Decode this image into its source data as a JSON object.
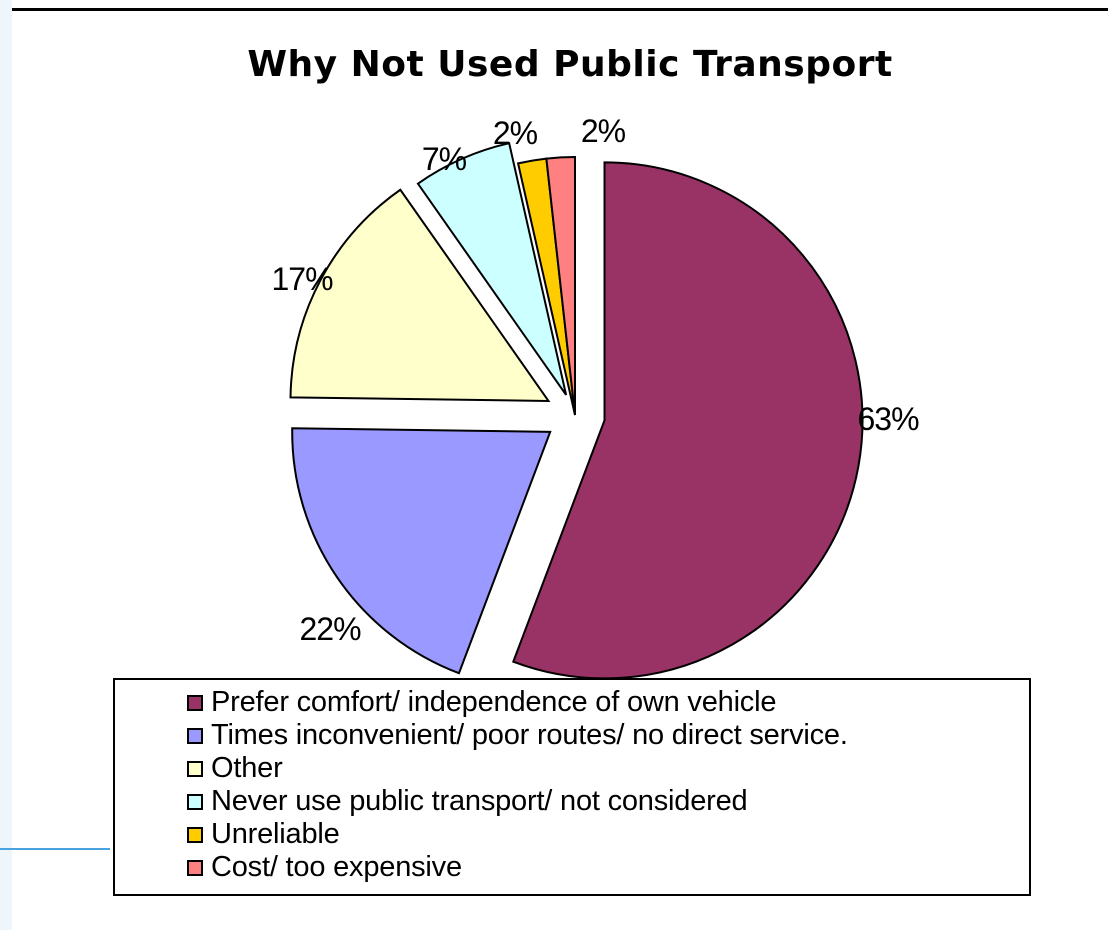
{
  "chart_data": {
    "type": "pie",
    "title": "Why Not Used Public Transport",
    "legend_position": "bottom",
    "slices": [
      {
        "label": "Prefer comfort/ independence of own vehicle",
        "value": 63,
        "display": "63%",
        "color": "#993366"
      },
      {
        "label": "Times inconvenient/ poor routes/ no direct service.",
        "value": 22,
        "display": "22%",
        "color": "#9999ff"
      },
      {
        "label": "Other",
        "value": 17,
        "display": "17%",
        "color": "#ffffcc"
      },
      {
        "label": "Never use public transport/ not considered",
        "value": 7,
        "display": "7%",
        "color": "#ccffff"
      },
      {
        "label": "Unreliable",
        "value": 2,
        "display": "2%",
        "color": "#ffcc00"
      },
      {
        "label": "Cost/ too expensive",
        "value": 2,
        "display": "2%",
        "color": "#ff8080"
      }
    ]
  }
}
